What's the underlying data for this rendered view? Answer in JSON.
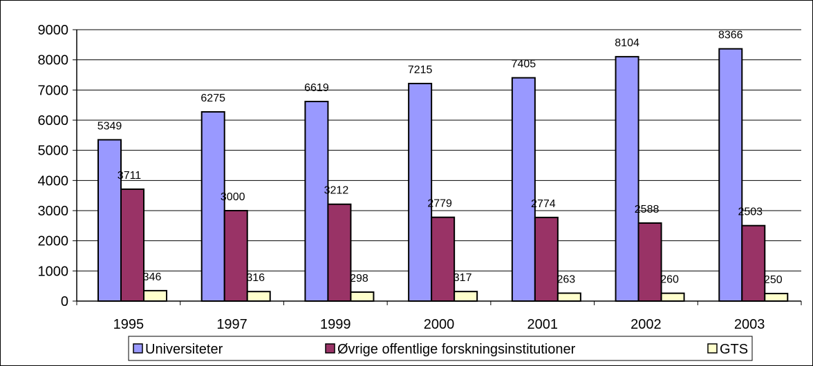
{
  "chart_data": {
    "type": "bar",
    "categories": [
      "1995",
      "1997",
      "1999",
      "2000",
      "2001",
      "2002",
      "2003"
    ],
    "series": [
      {
        "name": "Universiteter",
        "values": [
          5349,
          6275,
          6619,
          7215,
          7405,
          8104,
          8366
        ],
        "color": "#9999ff"
      },
      {
        "name": "Øvrige offentlige forskningsinstitutioner",
        "values": [
          3711,
          3000,
          3212,
          2779,
          2774,
          2588,
          2503
        ],
        "color": "#993366"
      },
      {
        "name": "GTS",
        "values": [
          346,
          316,
          298,
          317,
          263,
          260,
          250
        ],
        "color": "#ffffcc"
      }
    ],
    "ylim": [
      0,
      9000
    ],
    "yticks": [
      0,
      1000,
      2000,
      3000,
      4000,
      5000,
      6000,
      7000,
      8000,
      9000
    ],
    "grid": true,
    "legend_position": "bottom"
  }
}
